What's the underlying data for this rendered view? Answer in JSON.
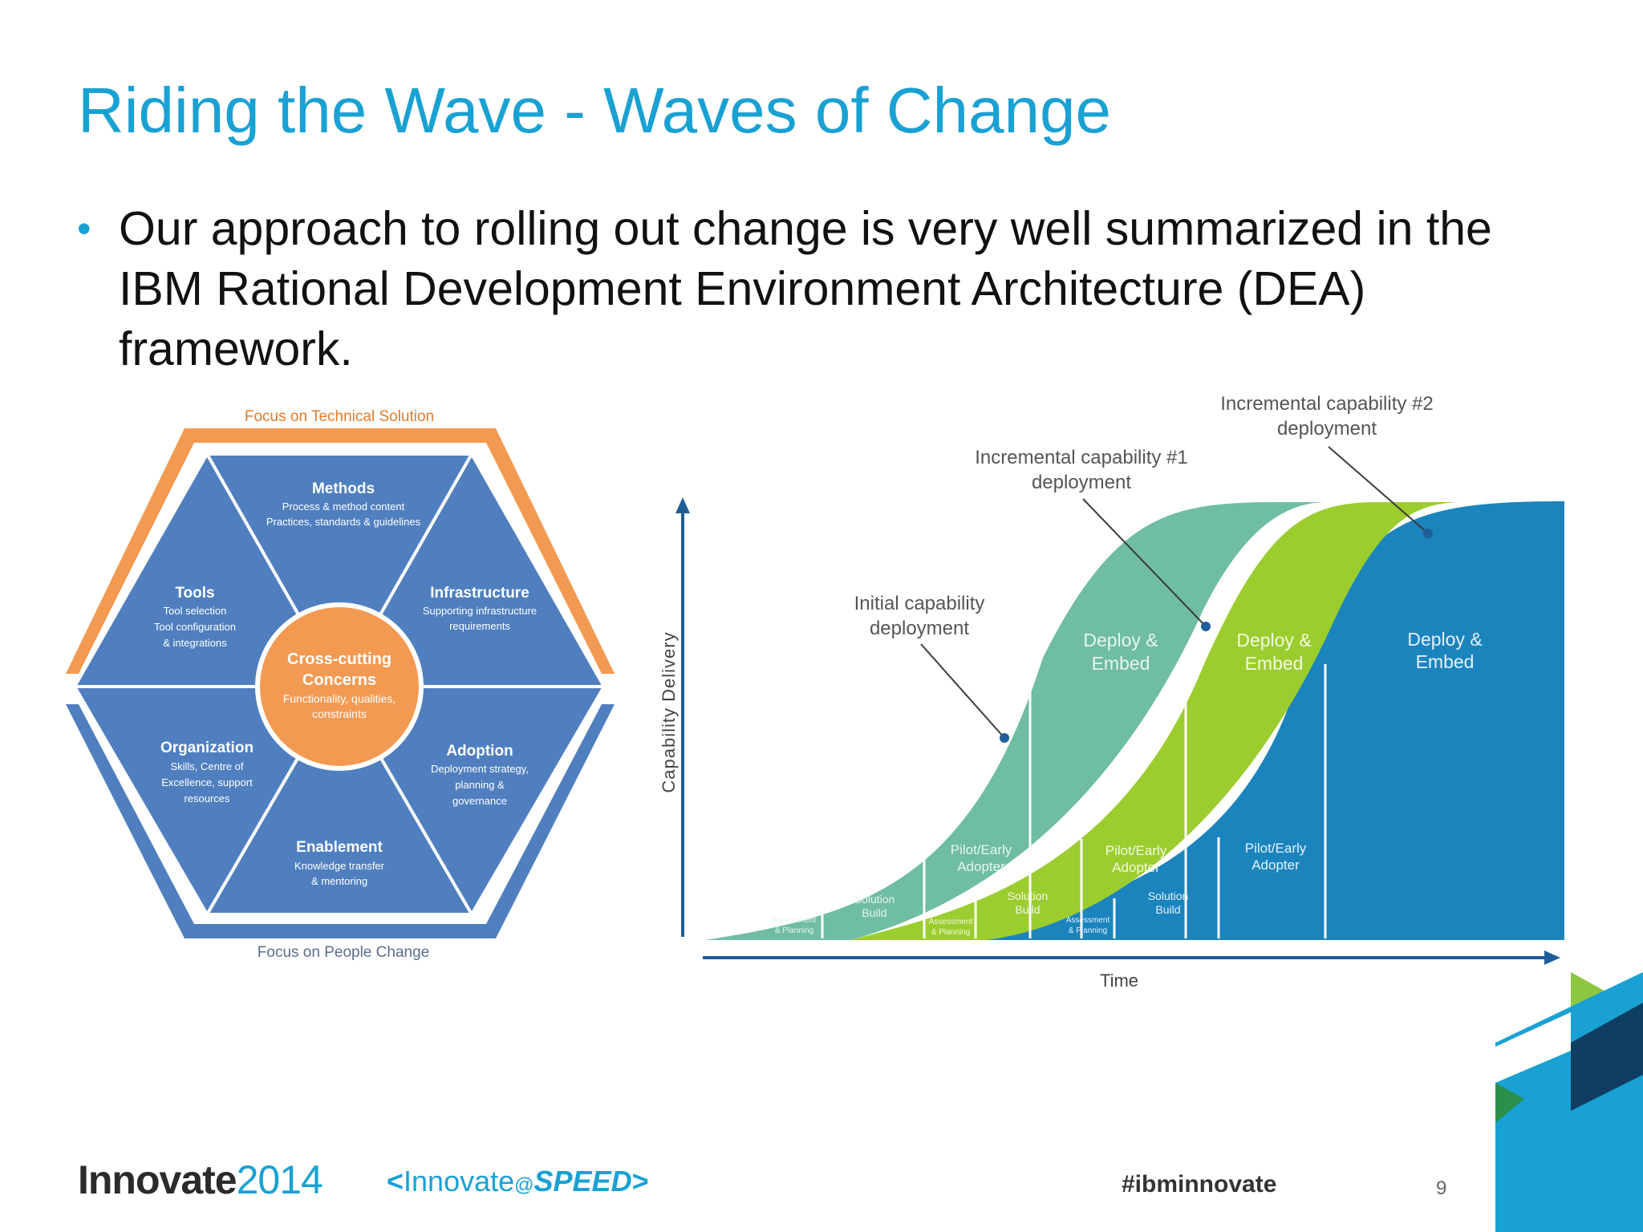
{
  "slide": {
    "title": "Riding the Wave - Waves of Change",
    "bullet": "Our approach to rolling out change is very well summarized in the IBM Rational Development Environment Architecture (DEA) framework.",
    "page_number": "9"
  },
  "hexagon": {
    "top_label": "Focus on Technical Solution",
    "bottom_label": "Focus on People Change",
    "center": {
      "title_line1": "Cross-cutting",
      "title_line2": "Concerns",
      "desc_line1": "Functionality, qualities,",
      "desc_line2": "constraints"
    },
    "segments": [
      {
        "name": "methods",
        "title": "Methods",
        "lines": [
          "Process & method content",
          "Practices, standards & guidelines"
        ]
      },
      {
        "name": "infrastructure",
        "title": "Infrastructure",
        "lines": [
          "Supporting infrastructure",
          "requirements"
        ]
      },
      {
        "name": "adoption",
        "title": "Adoption",
        "lines": [
          "Deployment strategy,",
          "planning &",
          "governance"
        ]
      },
      {
        "name": "enablement",
        "title": "Enablement",
        "lines": [
          "Knowledge transfer",
          "& mentoring"
        ]
      },
      {
        "name": "organization",
        "title": "Organization",
        "lines": [
          "Skills, Centre of",
          "Excellence, support",
          "resources"
        ]
      },
      {
        "name": "tools",
        "title": "Tools",
        "lines": [
          "Tool selection",
          "Tool configuration",
          "& integrations"
        ]
      }
    ],
    "colors": {
      "segment": "#4f7fbf",
      "center": "#f39a52",
      "top_band": "#f39a52",
      "bottom_band": "#4f7fbf"
    }
  },
  "wave_chart": {
    "y_axis_label": "Capability Delivery",
    "x_axis_label": "Time",
    "callouts": [
      {
        "line1": "Initial capability",
        "line2": "deployment"
      },
      {
        "line1": "Incremental  capability #1",
        "line2": "deployment"
      },
      {
        "line1": "Incremental  capability #2",
        "line2": "deployment"
      }
    ],
    "waves": [
      {
        "name": "initial",
        "color": "#6fbda3",
        "deploy_embed": [
          "Deploy &",
          "Embed"
        ],
        "pilot": [
          "Pilot/Early",
          "Adopter"
        ],
        "solution": [
          "Solution",
          "Build"
        ],
        "assessment": [
          "Assessment",
          "& Planning"
        ]
      },
      {
        "name": "incremental-1",
        "color": "#9ccd2f",
        "deploy_embed": [
          "Deploy &",
          "Embed"
        ],
        "pilot": [
          "Pilot/Early",
          "Adopter"
        ],
        "solution": [
          "Solution",
          "Build"
        ],
        "assessment": [
          "Assessment",
          "& Planning"
        ]
      },
      {
        "name": "incremental-2",
        "color": "#1b84bd",
        "deploy_embed": [
          "Deploy &",
          "Embed"
        ],
        "pilot": [
          "Pilot/Early",
          "Adopter"
        ],
        "solution": [
          "Solution",
          "Build"
        ],
        "assessment": [
          "Assessment",
          "& Planning"
        ]
      }
    ],
    "axis_color": "#1f5f97"
  },
  "footer": {
    "logo_word": "Innovate",
    "logo_year": "2014",
    "speed_left_bracket": "<",
    "speed_word": "Innovate",
    "speed_at": "@",
    "speed_bold": "SPEED",
    "speed_right_bracket": ">",
    "hashtag": "#ibminnovate"
  },
  "decoration": {
    "colors": [
      "#8dc63f",
      "#1aa1d3",
      "#0f3e63",
      "#2a8f4a"
    ]
  }
}
